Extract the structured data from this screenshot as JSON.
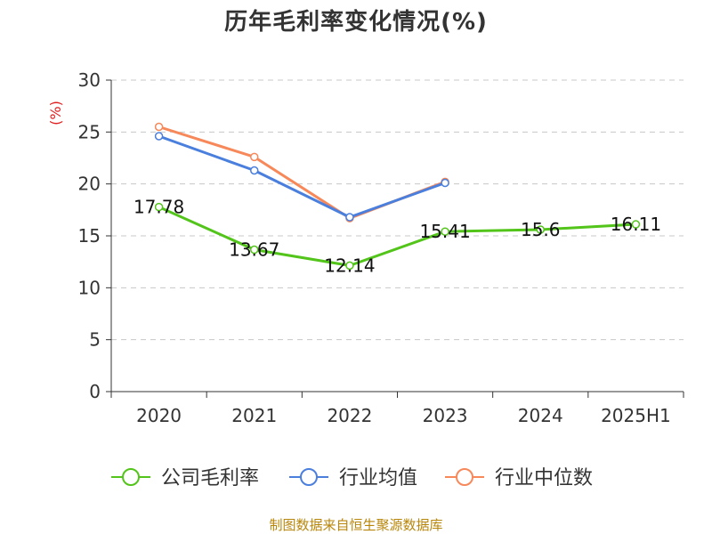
{
  "chart_data": {
    "type": "line",
    "title": "历年毛利率变化情况(%)",
    "ylabel": "(%)",
    "xlabel": "",
    "categories": [
      "2020",
      "2021",
      "2022",
      "2023",
      "2024",
      "2025H1"
    ],
    "ylim": [
      0,
      30
    ],
    "yticks": [
      0,
      5,
      10,
      15,
      20,
      25,
      30
    ],
    "grid": true,
    "legend_position": "bottom",
    "series": [
      {
        "name": "公司毛利率",
        "color": "#52c41a",
        "values": [
          17.78,
          13.67,
          12.14,
          15.41,
          15.6,
          16.11
        ],
        "labels": [
          "17.78",
          "13.67",
          "12.14",
          "15.41",
          "15.6",
          "16.11"
        ]
      },
      {
        "name": "行业均值",
        "color": "#4a7fdd",
        "values": [
          24.6,
          21.3,
          16.8,
          20.1,
          null,
          null
        ],
        "labels": []
      },
      {
        "name": "行业中位数",
        "color": "#f7885a",
        "values": [
          25.5,
          22.6,
          16.7,
          20.2,
          null,
          null
        ],
        "labels": []
      }
    ]
  },
  "source": "制图数据来自恒生聚源数据库"
}
